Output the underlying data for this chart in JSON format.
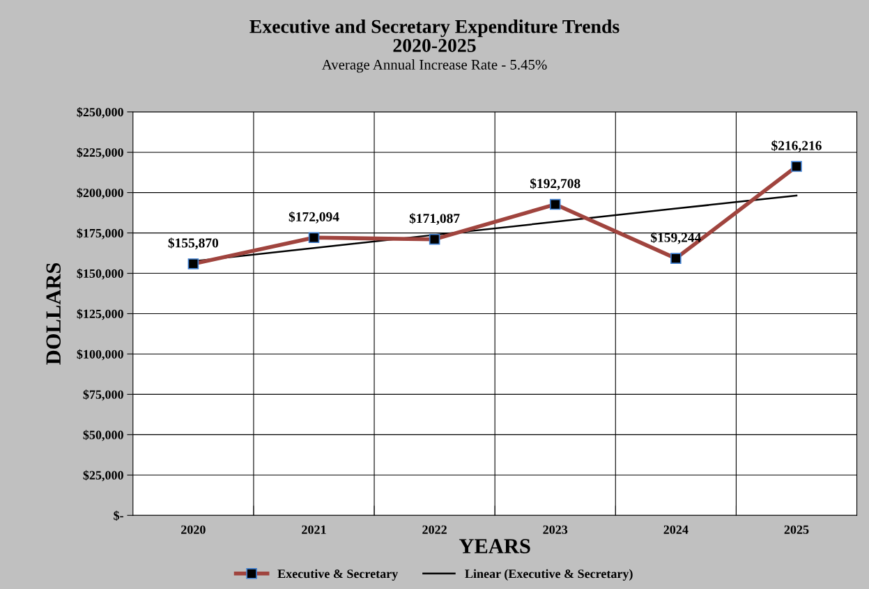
{
  "chart_data": {
    "type": "line",
    "title": "Executive and Secretary Expenditure Trends\n2020-2025",
    "subtitle": "Average Annual Increase Rate - 5.45%",
    "xlabel": "YEARS",
    "ylabel": "DOLLARS",
    "categories": [
      "2020",
      "2021",
      "2022",
      "2023",
      "2024",
      "2025"
    ],
    "series": [
      {
        "name": "Executive & Secretary",
        "color": "#a0443e",
        "values": [
          155870,
          172094,
          171087,
          192708,
          159244,
          216216
        ],
        "marker": "square",
        "value_labels": [
          "$155,870",
          "$172,094",
          "$171,087",
          "$192,708",
          "$159,244",
          "$216,216"
        ]
      },
      {
        "name": "Linear (Executive & Secretary)",
        "color": "#000000",
        "values": [
          157500,
          165700,
          173800,
          181900,
          190100,
          198200
        ],
        "marker": "none"
      }
    ],
    "ylim": [
      0,
      250000
    ],
    "yticks": [
      {
        "value": 0,
        "label": "$-"
      },
      {
        "value": 25000,
        "label": "$25,000"
      },
      {
        "value": 50000,
        "label": "$50,000"
      },
      {
        "value": 75000,
        "label": "$75,000"
      },
      {
        "value": 100000,
        "label": "$100,000"
      },
      {
        "value": 125000,
        "label": "$125,000"
      },
      {
        "value": 150000,
        "label": "$150,000"
      },
      {
        "value": 175000,
        "label": "$175,000"
      },
      {
        "value": 200000,
        "label": "$200,000"
      },
      {
        "value": 225000,
        "label": "$225,000"
      },
      {
        "value": 250000,
        "label": "$250,000"
      }
    ],
    "grid": true,
    "legend": "bottom",
    "line_style": "solid"
  }
}
